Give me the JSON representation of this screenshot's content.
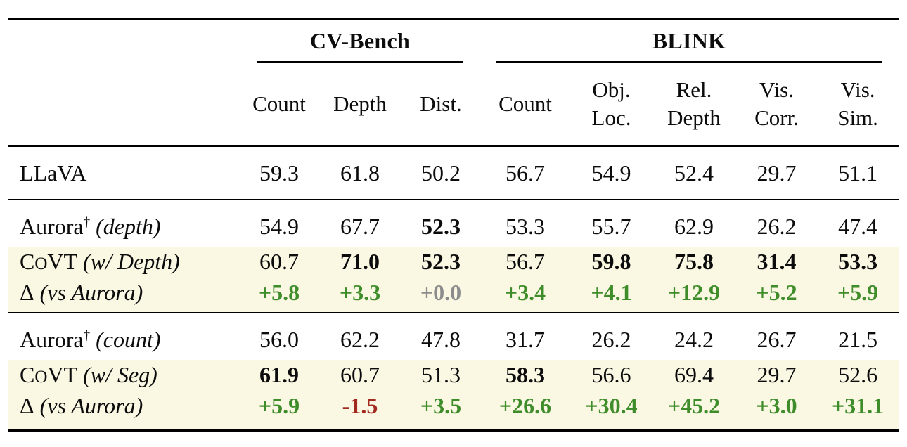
{
  "table": {
    "groups": [
      {
        "label": "CV-Bench"
      },
      {
        "label": "BLINK"
      }
    ],
    "columns": [
      {
        "id": "cvbench-count",
        "l1": "Count",
        "l2": ""
      },
      {
        "id": "cvbench-depth",
        "l1": "Depth",
        "l2": ""
      },
      {
        "id": "cvbench-dist",
        "l1": "Dist.",
        "l2": ""
      },
      {
        "id": "blink-count",
        "l1": "Count",
        "l2": ""
      },
      {
        "id": "blink-obj-loc",
        "l1": "Obj.",
        "l2": "Loc."
      },
      {
        "id": "blink-rel-depth",
        "l1": "Rel.",
        "l2": "Depth"
      },
      {
        "id": "blink-vis-corr",
        "l1": "Vis.",
        "l2": "Corr."
      },
      {
        "id": "blink-vis-sim",
        "l1": "Vis.",
        "l2": "Sim."
      }
    ],
    "colors": {
      "pos": "#3f8d2a",
      "neg": "#a2291e",
      "neu": "#8c8c8c",
      "hl": "#faf7e3"
    },
    "sections": [
      {
        "rows": [
          {
            "id": "llava",
            "kind": "tall",
            "highlight": false,
            "text": "LLaVA",
            "segments": [
              [
                "n",
                "LLaVA"
              ]
            ],
            "values": [
              {
                "v": "59.3"
              },
              {
                "v": "61.8"
              },
              {
                "v": "50.2"
              },
              {
                "v": "56.7"
              },
              {
                "v": "54.9"
              },
              {
                "v": "52.4"
              },
              {
                "v": "29.7"
              },
              {
                "v": "51.1"
              }
            ]
          }
        ]
      },
      {
        "rows": [
          {
            "id": "aurora-depth",
            "kind": "first",
            "highlight": false,
            "text": "Aurora† (depth)",
            "segments": [
              [
                "n",
                "Aurora"
              ],
              [
                "sup",
                "†"
              ],
              [
                "it",
                " (depth)"
              ]
            ],
            "values": [
              {
                "v": "54.9"
              },
              {
                "v": "67.7"
              },
              {
                "v": "52.3",
                "b": 1
              },
              {
                "v": "53.3"
              },
              {
                "v": "55.7"
              },
              {
                "v": "62.9"
              },
              {
                "v": "26.2"
              },
              {
                "v": "47.4"
              }
            ]
          },
          {
            "id": "covt-depth",
            "kind": "mid",
            "highlight": true,
            "text": "CoVT (w/ Depth)",
            "segments": [
              [
                "n",
                "C"
              ],
              [
                "sc",
                "O"
              ],
              [
                "n",
                "VT"
              ],
              [
                "it",
                " (w/ Depth)"
              ]
            ],
            "values": [
              {
                "v": "60.7"
              },
              {
                "v": "71.0",
                "b": 1
              },
              {
                "v": "52.3",
                "b": 1
              },
              {
                "v": "56.7"
              },
              {
                "v": "59.8",
                "b": 1
              },
              {
                "v": "75.8",
                "b": 1
              },
              {
                "v": "31.4",
                "b": 1
              },
              {
                "v": "53.3",
                "b": 1
              }
            ]
          },
          {
            "id": "delta-depth",
            "kind": "delta",
            "highlight": true,
            "text": "Δ (vs Aurora)",
            "segments": [
              [
                "n",
                "Δ"
              ],
              [
                "it",
                " (vs Aurora)"
              ]
            ],
            "values": [
              {
                "v": "+5.8",
                "c": "pos"
              },
              {
                "v": "+3.3",
                "c": "pos"
              },
              {
                "v": "+0.0",
                "c": "neu"
              },
              {
                "v": "+3.4",
                "c": "pos"
              },
              {
                "v": "+4.1",
                "c": "pos"
              },
              {
                "v": "+12.9",
                "c": "pos"
              },
              {
                "v": "+5.2",
                "c": "pos"
              },
              {
                "v": "+5.9",
                "c": "pos"
              }
            ]
          }
        ]
      },
      {
        "rows": [
          {
            "id": "aurora-count",
            "kind": "first",
            "highlight": false,
            "text": "Aurora† (count)",
            "segments": [
              [
                "n",
                "Aurora"
              ],
              [
                "sup",
                "†"
              ],
              [
                "it",
                " (count)"
              ]
            ],
            "values": [
              {
                "v": "56.0"
              },
              {
                "v": "62.2"
              },
              {
                "v": "47.8"
              },
              {
                "v": "31.7"
              },
              {
                "v": "26.2"
              },
              {
                "v": "24.2"
              },
              {
                "v": "26.7"
              },
              {
                "v": "21.5"
              }
            ]
          },
          {
            "id": "covt-seg",
            "kind": "mid",
            "highlight": true,
            "text": "CoVT (w/ Seg)",
            "segments": [
              [
                "n",
                "C"
              ],
              [
                "sc",
                "O"
              ],
              [
                "n",
                "VT"
              ],
              [
                "it",
                " (w/ Seg)"
              ]
            ],
            "values": [
              {
                "v": "61.9",
                "b": 1
              },
              {
                "v": "60.7"
              },
              {
                "v": "51.3"
              },
              {
                "v": "58.3",
                "b": 1
              },
              {
                "v": "56.6"
              },
              {
                "v": "69.4"
              },
              {
                "v": "29.7"
              },
              {
                "v": "52.6"
              }
            ]
          },
          {
            "id": "delta-seg",
            "kind": "delta",
            "highlight": true,
            "text": "Δ (vs Aurora)",
            "segments": [
              [
                "n",
                "Δ"
              ],
              [
                "it",
                " (vs Aurora)"
              ]
            ],
            "values": [
              {
                "v": "+5.9",
                "c": "pos"
              },
              {
                "v": "-1.5",
                "c": "neg"
              },
              {
                "v": "+3.5",
                "c": "pos"
              },
              {
                "v": "+26.6",
                "c": "pos"
              },
              {
                "v": "+30.4",
                "c": "pos"
              },
              {
                "v": "+45.2",
                "c": "pos"
              },
              {
                "v": "+3.0",
                "c": "pos"
              },
              {
                "v": "+31.1",
                "c": "pos"
              }
            ]
          }
        ]
      }
    ]
  }
}
